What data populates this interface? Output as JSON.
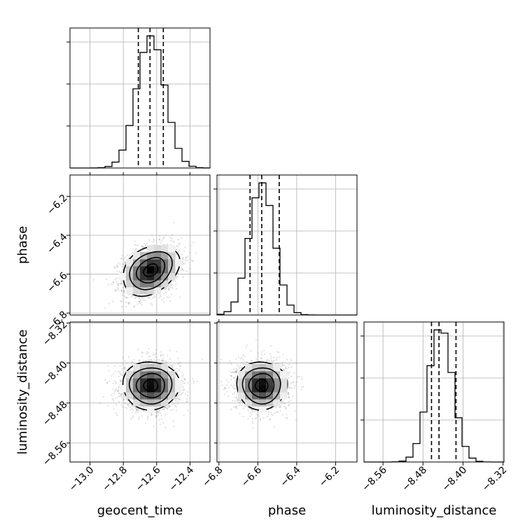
{
  "chart_data": {
    "type": "corner",
    "parameters": [
      "geocent_time",
      "phase",
      "luminosity_distance"
    ],
    "ranges": {
      "geocent_time": [
        -13.12,
        -12.28
      ],
      "phase": [
        -6.81,
        -6.09
      ],
      "luminosity_distance": [
        -8.598,
        -8.318
      ]
    },
    "ticks": {
      "geocent_time": [
        -13.0,
        -12.8,
        -12.6,
        -12.4
      ],
      "phase": [
        -6.8,
        -6.6,
        -6.4,
        -6.2
      ],
      "luminosity_distance": [
        -8.56,
        -8.48,
        -8.4,
        -8.32
      ]
    },
    "tick_labels": {
      "geocent_time": [
        "−13.0",
        "−12.8",
        "−12.6",
        "−12.4"
      ],
      "phase": [
        "−6.8",
        "−6.6",
        "−6.4",
        "−6.2"
      ],
      "luminosity_distance": [
        "−8.56",
        "−8.48",
        "−8.40",
        "−8.32"
      ]
    },
    "quantiles": {
      "geocent_time": [
        -12.71,
        -12.64,
        -12.56
      ],
      "phase": [
        -6.64,
        -6.58,
        -6.49
      ],
      "luminosity_distance": [
        -8.463,
        -8.448,
        -8.414
      ]
    },
    "posteriors": {
      "geocent_time": {
        "mean": -12.635,
        "sd": 0.085
      },
      "phase": {
        "mean": -6.58,
        "sd": 0.065
      },
      "luminosity_distance": {
        "mean": -8.445,
        "sd": 0.024
      }
    },
    "correlations": {
      "phase|geocent_time": 0.3,
      "luminosity_distance|geocent_time": 0.0,
      "luminosity_distance|phase": 0.0
    },
    "bins": 20,
    "grid": true
  }
}
